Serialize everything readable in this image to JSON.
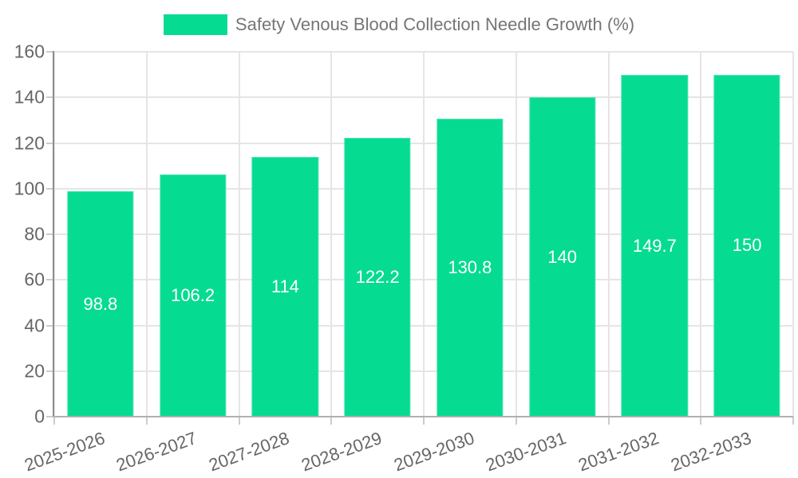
{
  "chart_data": {
    "type": "bar",
    "title": "Safety Venous Blood Collection Needle Growth (%)",
    "categories": [
      "2025-2026",
      "2026-2027",
      "2027-2028",
      "2028-2029",
      "2029-2030",
      "2030-2031",
      "2031-2032",
      "2032-2033"
    ],
    "series": [
      {
        "name": "Safety Venous Blood Collection Needle Growth (%)",
        "values": [
          98.8,
          106.2,
          114,
          122.2,
          130.8,
          140,
          149.7,
          150
        ],
        "value_labels": [
          "98.8",
          "106.2",
          "114",
          "122.2",
          "130.8",
          "140",
          "149.7",
          "150"
        ]
      }
    ],
    "xlabel": "",
    "ylabel": "",
    "ylim": [
      0,
      160
    ],
    "y_ticks": [
      0,
      20,
      40,
      60,
      80,
      100,
      120,
      140,
      160
    ],
    "grid": true,
    "legend_position": "top",
    "value_label_position": "inside-center",
    "x_label_rotation_deg": -20,
    "colors": {
      "bar": "#06DB92",
      "grid_line": "#e5e5e5",
      "tick_mark": "#cccccc",
      "tick_text": "#666666",
      "legend_text": "#757575",
      "value_text": "#ffffff",
      "y_axis_line": "#8c8c8c",
      "x_axis_line": "#b0b0b0",
      "background": "#ffffff"
    }
  }
}
